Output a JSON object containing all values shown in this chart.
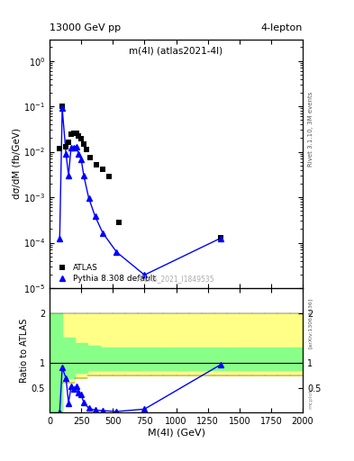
{
  "title_top": "13000 GeV pp",
  "title_top_right": "4-lepton",
  "plot_label": "m(4l) (atlas2021-4l)",
  "right_label_top": "Rivet 3.1.10, 3M events",
  "arxiv_label": "[arXiv:1306.3436]",
  "watermark": "ATLAS_2021_I1849535",
  "ylabel_main": "dσ/dM (fb/GeV)",
  "ylabel_ratio": "Ratio to ATLAS",
  "xlabel": "M(4l) (GeV)",
  "atlas_x": [
    80,
    100,
    130,
    150,
    170,
    190,
    210,
    230,
    250,
    270,
    290,
    320,
    370,
    420,
    470,
    550,
    1350
  ],
  "atlas_y": [
    0.012,
    0.1,
    0.013,
    0.016,
    0.024,
    0.026,
    0.025,
    0.022,
    0.019,
    0.015,
    0.011,
    0.0075,
    0.0052,
    0.0042,
    0.0028,
    0.00028,
    0.00013
  ],
  "pythia_x": [
    80,
    100,
    130,
    150,
    170,
    190,
    210,
    230,
    250,
    270,
    310,
    360,
    420,
    530,
    750,
    1350
  ],
  "pythia_y": [
    0.000125,
    0.09,
    0.009,
    0.003,
    0.0125,
    0.0125,
    0.013,
    0.009,
    0.0068,
    0.003,
    0.00095,
    0.00038,
    0.000165,
    6.2e-05,
    1.95e-05,
    0.000125
  ],
  "atlas_color": "black",
  "pythia_color": "blue",
  "ylim_main": [
    1e-05,
    3.0
  ],
  "xlim": [
    0,
    2000
  ],
  "band_x_edges": [
    0,
    100,
    200,
    300,
    400,
    500,
    600,
    700,
    800,
    900,
    1000,
    1100,
    1200,
    1300,
    1400,
    1500,
    1600,
    1700,
    1800,
    1900,
    2000
  ],
  "band_yellow_lo": [
    0.0,
    0.6,
    0.7,
    0.75,
    0.75,
    0.75,
    0.75,
    0.75,
    0.75,
    0.75,
    0.75,
    0.75,
    0.75,
    0.75,
    0.75,
    0.75,
    0.75,
    0.75,
    0.75,
    0.75
  ],
  "band_yellow_hi": [
    2.0,
    2.0,
    2.0,
    2.0,
    2.0,
    2.0,
    2.0,
    2.0,
    2.0,
    2.0,
    2.0,
    2.0,
    2.0,
    2.0,
    2.0,
    2.0,
    2.0,
    2.0,
    2.0,
    2.0
  ],
  "band_green_lo": [
    0.0,
    0.7,
    0.8,
    0.85,
    0.85,
    0.85,
    0.85,
    0.85,
    0.85,
    0.85,
    0.85,
    0.85,
    0.85,
    0.85,
    0.85,
    0.85,
    0.85,
    0.85,
    0.85,
    0.85
  ],
  "band_green_hi": [
    2.0,
    1.5,
    1.4,
    1.35,
    1.3,
    1.3,
    1.3,
    1.3,
    1.3,
    1.3,
    1.3,
    1.3,
    1.3,
    1.3,
    1.3,
    1.3,
    1.3,
    1.3,
    1.3,
    1.3
  ],
  "ratio_x": [
    80,
    100,
    130,
    150,
    170,
    190,
    210,
    230,
    250,
    270,
    310,
    360,
    420,
    530,
    750,
    1350
  ],
  "ratio_y": [
    0.01,
    0.9,
    0.69,
    0.19,
    0.52,
    0.48,
    0.52,
    0.41,
    0.36,
    0.2,
    0.086,
    0.05,
    0.039,
    0.022,
    0.07,
    0.96
  ],
  "ratio_yticks": [
    0.5,
    1.0,
    2.0
  ],
  "ratio_ylim": [
    0.0,
    2.5
  ]
}
